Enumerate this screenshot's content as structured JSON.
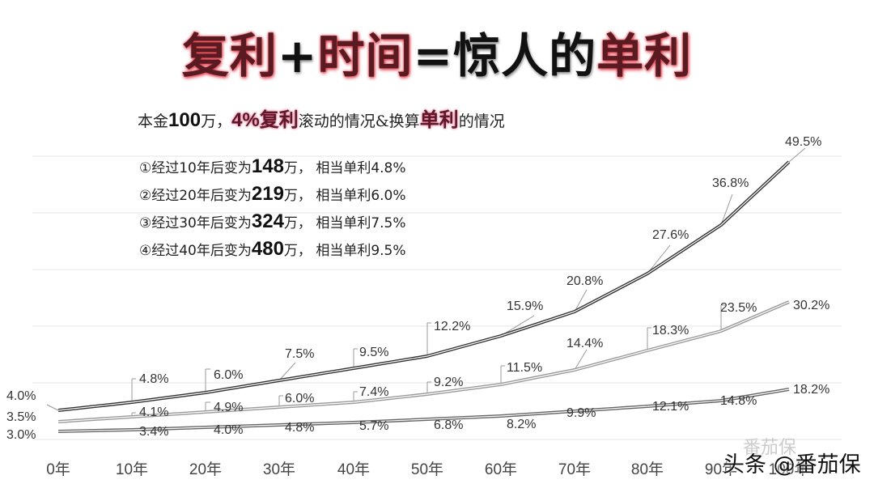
{
  "title": {
    "part1": "复利",
    "plus": "+",
    "part2": "时间",
    "equals": "=",
    "part3": "惊人的",
    "part4": "单利"
  },
  "subtitle": {
    "t1": "本金",
    "t2": "100",
    "t3": "万，",
    "t4": "4%复利",
    "t5": "滚动的情况&换算",
    "t6": "单利",
    "t7": "的情况"
  },
  "notes": [
    {
      "prefix": "①经过10年后变为",
      "amount": "148",
      "suffix": "万， 相当单利4.8%"
    },
    {
      "prefix": "②经过20年后变为",
      "amount": "219",
      "suffix": "万， 相当单利6.0%"
    },
    {
      "prefix": "③经过30年后变为",
      "amount": "324",
      "suffix": "万， 相当单利7.5%"
    },
    {
      "prefix": "④经过40年后变为",
      "amount": "480",
      "suffix": "万， 相当单利9.5%"
    }
  ],
  "watermark": {
    "ghost": "番茄保",
    "text": "头条 @番茄保"
  },
  "chart_data": {
    "type": "line",
    "title": "复利+时间=惊人的单利",
    "subtitle": "本金100万，4%复利滚动的情况&换算单利的情况",
    "xlabel": "",
    "ylabel": "",
    "categories": [
      "0年",
      "10年",
      "20年",
      "30年",
      "40年",
      "50年",
      "60年",
      "70年",
      "80年",
      "90年",
      "100年"
    ],
    "series": [
      {
        "name": "4.0%",
        "values": [
          4.0,
          4.8,
          6.0,
          7.5,
          9.5,
          12.2,
          15.9,
          20.8,
          27.6,
          36.8,
          49.5
        ],
        "labels": [
          "4.0%",
          "4.8%",
          "6.0%",
          "7.5%",
          "9.5%",
          "12.2%",
          "15.9%",
          "20.8%",
          "27.6%",
          "36.8%",
          "49.5%"
        ]
      },
      {
        "name": "3.5%",
        "values": [
          3.5,
          4.1,
          4.9,
          6.0,
          7.4,
          9.2,
          11.5,
          14.4,
          18.3,
          23.5,
          30.2
        ],
        "labels": [
          "3.5%",
          "4.1%",
          "4.9%",
          "6.0%",
          "7.4%",
          "9.2%",
          "11.5%",
          "14.4%",
          "18.3%",
          "23.5%",
          "30.2%"
        ]
      },
      {
        "name": "3.0%",
        "values": [
          3.0,
          3.4,
          4.0,
          4.8,
          5.7,
          6.8,
          8.2,
          9.9,
          12.1,
          14.8,
          18.2
        ],
        "labels": [
          "3.0%",
          "3.4%",
          "4.0%",
          "4.8%",
          "5.7%",
          "6.8%",
          "8.2%",
          "9.9%",
          "12.1%",
          "14.8%",
          "18.2%"
        ]
      }
    ],
    "grid": true,
    "legend": "none"
  }
}
